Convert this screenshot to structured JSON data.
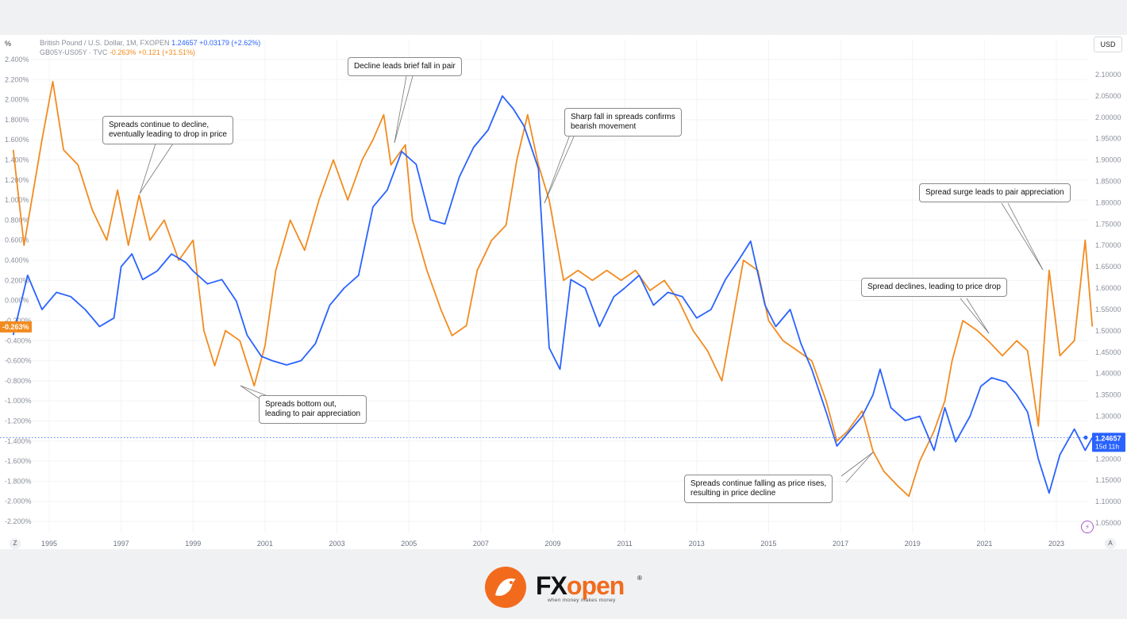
{
  "legend": {
    "gbp_label": "British Pound / U.S. Dollar, 1M, FXOPEN",
    "gbp_price": "1.24657",
    "gbp_change": "+0.03179 (+2.62%)",
    "spread_label": "GB05Y-US05Y · TVC",
    "spread_value": "-0.263%",
    "spread_change": "+0.121 (+31.51%)"
  },
  "axis_units": {
    "left": "%",
    "right": "USD"
  },
  "left_axis_ticks": [
    "2.400%",
    "2.200%",
    "2.000%",
    "1.800%",
    "1.600%",
    "1.400%",
    "1.200%",
    "1.000%",
    "0.800%",
    "0.600%",
    "0.400%",
    "0.200%",
    "0.000%",
    "-0.200%",
    "-0.400%",
    "-0.600%",
    "-0.800%",
    "-1.000%",
    "-1.200%",
    "-1.400%",
    "-1.600%",
    "-1.800%",
    "-2.000%",
    "-2.200%"
  ],
  "right_axis_ticks": [
    "2.10000",
    "2.05000",
    "2.00000",
    "1.95000",
    "1.90000",
    "1.85000",
    "1.80000",
    "1.75000",
    "1.70000",
    "1.65000",
    "1.60000",
    "1.55000",
    "1.50000",
    "1.45000",
    "1.40000",
    "1.35000",
    "1.30000",
    "1.25000",
    "1.20000",
    "1.15000",
    "1.10000",
    "1.05000"
  ],
  "x_axis_ticks": [
    "1995",
    "1997",
    "1999",
    "2001",
    "2003",
    "2005",
    "2007",
    "2009",
    "2011",
    "2013",
    "2015",
    "2017",
    "2019",
    "2021",
    "2023"
  ],
  "price_tags": {
    "spread_last": "-0.263%",
    "gbp_last": "1.24657",
    "gbp_countdown": "15d 11h"
  },
  "axis_buttons": {
    "left": "Z",
    "right": "A"
  },
  "annotations": [
    {
      "text": "Spreads continue to decline,\neventually leading to drop in price"
    },
    {
      "text": "Decline leads brief fall in pair"
    },
    {
      "text": "Sharp fall in spreads confirms\nbearish movement"
    },
    {
      "text": "Spreads bottom out,\nleading to pair appreciation"
    },
    {
      "text": "Spread surge leads to pair appreciation"
    },
    {
      "text": "Spread declines, leading to price drop"
    },
    {
      "text": "Spreads continue falling as price rises,\nresulting in price decline"
    }
  ],
  "colors": {
    "gbp_line": "#2962ff",
    "spread_line": "#f28b1f",
    "grid": "#f0f2f5"
  },
  "brand": {
    "name_a": "FX",
    "name_b": "open",
    "reg": "®",
    "tagline": "when money makes money"
  },
  "chart_data": [
    {
      "type": "line",
      "x_axis_ticks": [
        "1995",
        "1997",
        "1999",
        "2001",
        "2003",
        "2005",
        "2007",
        "2009",
        "2011",
        "2013",
        "2015",
        "2017",
        "2019",
        "2021",
        "2023"
      ],
      "grid": true,
      "series": [
        {
          "name": "British Pound / U.S. Dollar, 1M, FXOPEN",
          "axis": "right",
          "unit": "USD",
          "ylim": [
            1.03,
            2.12
          ],
          "points": [
            [
              1994.0,
              1.49
            ],
            [
              1994.4,
              1.63
            ],
            [
              1994.8,
              1.55
            ],
            [
              1995.2,
              1.59
            ],
            [
              1995.6,
              1.58
            ],
            [
              1996.0,
              1.55
            ],
            [
              1996.4,
              1.51
            ],
            [
              1996.8,
              1.53
            ],
            [
              1997.0,
              1.65
            ],
            [
              1997.3,
              1.68
            ],
            [
              1997.6,
              1.62
            ],
            [
              1998.0,
              1.64
            ],
            [
              1998.4,
              1.68
            ],
            [
              1998.8,
              1.66
            ],
            [
              1999.0,
              1.64
            ],
            [
              1999.4,
              1.61
            ],
            [
              1999.8,
              1.62
            ],
            [
              2000.2,
              1.57
            ],
            [
              2000.5,
              1.49
            ],
            [
              2000.9,
              1.44
            ],
            [
              2001.2,
              1.43
            ],
            [
              2001.6,
              1.42
            ],
            [
              2002.0,
              1.43
            ],
            [
              2002.4,
              1.47
            ],
            [
              2002.8,
              1.56
            ],
            [
              2003.2,
              1.6
            ],
            [
              2003.6,
              1.63
            ],
            [
              2004.0,
              1.79
            ],
            [
              2004.4,
              1.83
            ],
            [
              2004.8,
              1.92
            ],
            [
              2005.2,
              1.89
            ],
            [
              2005.6,
              1.76
            ],
            [
              2006.0,
              1.75
            ],
            [
              2006.4,
              1.86
            ],
            [
              2006.8,
              1.93
            ],
            [
              2007.2,
              1.97
            ],
            [
              2007.6,
              2.05
            ],
            [
              2007.9,
              2.02
            ],
            [
              2008.2,
              1.98
            ],
            [
              2008.6,
              1.88
            ],
            [
              2008.9,
              1.46
            ],
            [
              2009.2,
              1.41
            ],
            [
              2009.5,
              1.62
            ],
            [
              2009.9,
              1.6
            ],
            [
              2010.3,
              1.51
            ],
            [
              2010.7,
              1.58
            ],
            [
              2011.0,
              1.6
            ],
            [
              2011.4,
              1.63
            ],
            [
              2011.8,
              1.56
            ],
            [
              2012.2,
              1.59
            ],
            [
              2012.6,
              1.58
            ],
            [
              2013.0,
              1.53
            ],
            [
              2013.4,
              1.55
            ],
            [
              2013.8,
              1.62
            ],
            [
              2014.2,
              1.67
            ],
            [
              2014.5,
              1.71
            ],
            [
              2014.9,
              1.56
            ],
            [
              2015.2,
              1.51
            ],
            [
              2015.6,
              1.55
            ],
            [
              2015.9,
              1.47
            ],
            [
              2016.2,
              1.41
            ],
            [
              2016.6,
              1.31
            ],
            [
              2016.9,
              1.23
            ],
            [
              2017.2,
              1.26
            ],
            [
              2017.6,
              1.3
            ],
            [
              2017.9,
              1.35
            ],
            [
              2018.1,
              1.41
            ],
            [
              2018.4,
              1.32
            ],
            [
              2018.8,
              1.29
            ],
            [
              2019.2,
              1.3
            ],
            [
              2019.6,
              1.22
            ],
            [
              2019.9,
              1.32
            ],
            [
              2020.2,
              1.24
            ],
            [
              2020.6,
              1.3
            ],
            [
              2020.9,
              1.37
            ],
            [
              2021.2,
              1.39
            ],
            [
              2021.6,
              1.38
            ],
            [
              2021.9,
              1.35
            ],
            [
              2022.2,
              1.31
            ],
            [
              2022.5,
              1.2
            ],
            [
              2022.8,
              1.12
            ],
            [
              2023.1,
              1.21
            ],
            [
              2023.5,
              1.27
            ],
            [
              2023.8,
              1.22
            ],
            [
              2024.0,
              1.25
            ]
          ]
        },
        {
          "name": "GB05Y-US05Y · TVC",
          "axis": "left",
          "unit": "%",
          "ylim": [
            -2.3,
            2.45
          ],
          "points": [
            [
              1994.0,
              1.5
            ],
            [
              1994.3,
              0.55
            ],
            [
              1994.8,
              1.6
            ],
            [
              1995.1,
              2.18
            ],
            [
              1995.4,
              1.5
            ],
            [
              1995.8,
              1.35
            ],
            [
              1996.2,
              0.9
            ],
            [
              1996.6,
              0.6
            ],
            [
              1996.9,
              1.1
            ],
            [
              1997.2,
              0.55
            ],
            [
              1997.5,
              1.05
            ],
            [
              1997.8,
              0.6
            ],
            [
              1998.2,
              0.8
            ],
            [
              1998.6,
              0.4
            ],
            [
              1999.0,
              0.6
            ],
            [
              1999.3,
              -0.3
            ],
            [
              1999.6,
              -0.65
            ],
            [
              1999.9,
              -0.3
            ],
            [
              2000.3,
              -0.4
            ],
            [
              2000.7,
              -0.85
            ],
            [
              2001.0,
              -0.45
            ],
            [
              2001.3,
              0.3
            ],
            [
              2001.7,
              0.8
            ],
            [
              2002.1,
              0.5
            ],
            [
              2002.5,
              1.0
            ],
            [
              2002.9,
              1.4
            ],
            [
              2003.3,
              1.0
            ],
            [
              2003.7,
              1.4
            ],
            [
              2004.0,
              1.6
            ],
            [
              2004.3,
              1.85
            ],
            [
              2004.5,
              1.35
            ],
            [
              2004.9,
              1.55
            ],
            [
              2005.1,
              0.8
            ],
            [
              2005.5,
              0.3
            ],
            [
              2005.9,
              -0.1
            ],
            [
              2006.2,
              -0.35
            ],
            [
              2006.6,
              -0.25
            ],
            [
              2006.9,
              0.3
            ],
            [
              2007.3,
              0.6
            ],
            [
              2007.7,
              0.75
            ],
            [
              2008.0,
              1.4
            ],
            [
              2008.3,
              1.85
            ],
            [
              2008.6,
              1.35
            ],
            [
              2008.9,
              1.0
            ],
            [
              2009.3,
              0.2
            ],
            [
              2009.7,
              0.3
            ],
            [
              2010.1,
              0.2
            ],
            [
              2010.5,
              0.3
            ],
            [
              2010.9,
              0.2
            ],
            [
              2011.3,
              0.3
            ],
            [
              2011.7,
              0.1
            ],
            [
              2012.1,
              0.2
            ],
            [
              2012.5,
              0.0
            ],
            [
              2012.9,
              -0.3
            ],
            [
              2013.3,
              -0.5
            ],
            [
              2013.7,
              -0.8
            ],
            [
              2014.0,
              -0.2
            ],
            [
              2014.3,
              0.4
            ],
            [
              2014.7,
              0.3
            ],
            [
              2015.0,
              -0.2
            ],
            [
              2015.4,
              -0.4
            ],
            [
              2015.8,
              -0.5
            ],
            [
              2016.2,
              -0.6
            ],
            [
              2016.6,
              -1.0
            ],
            [
              2016.9,
              -1.4
            ],
            [
              2017.2,
              -1.3
            ],
            [
              2017.6,
              -1.1
            ],
            [
              2017.9,
              -1.5
            ],
            [
              2018.2,
              -1.7
            ],
            [
              2018.6,
              -1.85
            ],
            [
              2018.9,
              -1.95
            ],
            [
              2019.2,
              -1.6
            ],
            [
              2019.6,
              -1.3
            ],
            [
              2019.9,
              -1.0
            ],
            [
              2020.1,
              -0.6
            ],
            [
              2020.4,
              -0.2
            ],
            [
              2020.8,
              -0.3
            ],
            [
              2021.1,
              -0.4
            ],
            [
              2021.5,
              -0.55
            ],
            [
              2021.9,
              -0.4
            ],
            [
              2022.2,
              -0.5
            ],
            [
              2022.5,
              -1.25
            ],
            [
              2022.8,
              0.3
            ],
            [
              2023.1,
              -0.55
            ],
            [
              2023.5,
              -0.4
            ],
            [
              2023.8,
              0.6
            ],
            [
              2024.0,
              -0.26
            ]
          ]
        }
      ]
    }
  ]
}
